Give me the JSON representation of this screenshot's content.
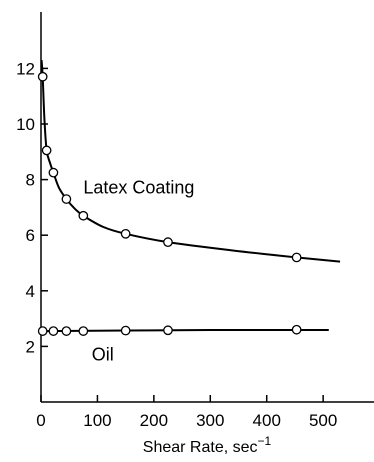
{
  "chart_data": {
    "type": "line",
    "title": "",
    "xlabel_main": "Shear Rate, sec",
    "xlabel_sup": "−1",
    "ylabel": "",
    "xlim": [
      0,
      600
    ],
    "ylim": [
      0,
      14
    ],
    "x_ticks": [
      0,
      100,
      200,
      300,
      400,
      500
    ],
    "x_tick_labels": [
      "0",
      "100",
      "200",
      "300",
      "400",
      "500"
    ],
    "y_ticks": [
      2,
      4,
      6,
      8,
      10,
      12
    ],
    "y_tick_labels": [
      "2",
      "4",
      "6",
      "8",
      "10",
      "12"
    ],
    "grid": false,
    "series": [
      {
        "name": "Latex Coating",
        "points": [
          {
            "x": 3,
            "y": 11.7
          },
          {
            "x": 10,
            "y": 9.05
          },
          {
            "x": 22,
            "y": 8.25
          },
          {
            "x": 45,
            "y": 7.3
          },
          {
            "x": 75,
            "y": 6.7
          },
          {
            "x": 150,
            "y": 6.05
          },
          {
            "x": 225,
            "y": 5.75
          },
          {
            "x": 453,
            "y": 5.2
          }
        ],
        "curve": [
          {
            "x": 1,
            "y": 12.3
          },
          {
            "x": 3,
            "y": 11.7
          },
          {
            "x": 6,
            "y": 10.2
          },
          {
            "x": 10,
            "y": 9.05
          },
          {
            "x": 16,
            "y": 8.6
          },
          {
            "x": 22,
            "y": 8.25
          },
          {
            "x": 32,
            "y": 7.7
          },
          {
            "x": 45,
            "y": 7.3
          },
          {
            "x": 60,
            "y": 6.95
          },
          {
            "x": 75,
            "y": 6.7
          },
          {
            "x": 110,
            "y": 6.3
          },
          {
            "x": 150,
            "y": 6.05
          },
          {
            "x": 225,
            "y": 5.75
          },
          {
            "x": 340,
            "y": 5.45
          },
          {
            "x": 453,
            "y": 5.2
          },
          {
            "x": 530,
            "y": 5.05
          }
        ]
      },
      {
        "name": "Oil",
        "points": [
          {
            "x": 3,
            "y": 2.55
          },
          {
            "x": 22,
            "y": 2.55
          },
          {
            "x": 45,
            "y": 2.55
          },
          {
            "x": 75,
            "y": 2.55
          },
          {
            "x": 150,
            "y": 2.57
          },
          {
            "x": 225,
            "y": 2.58
          },
          {
            "x": 453,
            "y": 2.6
          }
        ],
        "curve": [
          {
            "x": 0,
            "y": 2.55
          },
          {
            "x": 150,
            "y": 2.57
          },
          {
            "x": 300,
            "y": 2.59
          },
          {
            "x": 510,
            "y": 2.59
          }
        ]
      }
    ],
    "annotations": [
      {
        "text": "Latex Coating",
        "x": 75,
        "y": 7.5
      },
      {
        "text": "Oil",
        "x": 90,
        "y": 1.5
      }
    ]
  }
}
